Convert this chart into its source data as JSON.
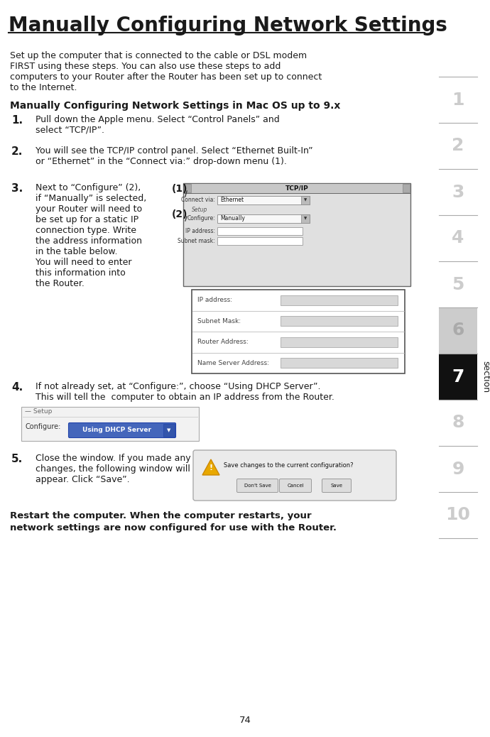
{
  "title": "Manually Configuring Network Settings",
  "bg_color": "#ffffff",
  "text_color": "#1a1a1a",
  "sidebar_numbers": [
    "1",
    "2",
    "3",
    "4",
    "5",
    "6",
    "7",
    "8",
    "9",
    "10"
  ],
  "intro_text": "Set up the computer that is connected to the cable or DSL modem\nFIRST using these steps. You can also use these steps to add\ncomputers to your Router after the Router has been set up to connect\nto the Internet.",
  "subtitle": "Manually Configuring Network Settings in Mac OS up to 9.x",
  "page_num": "74"
}
